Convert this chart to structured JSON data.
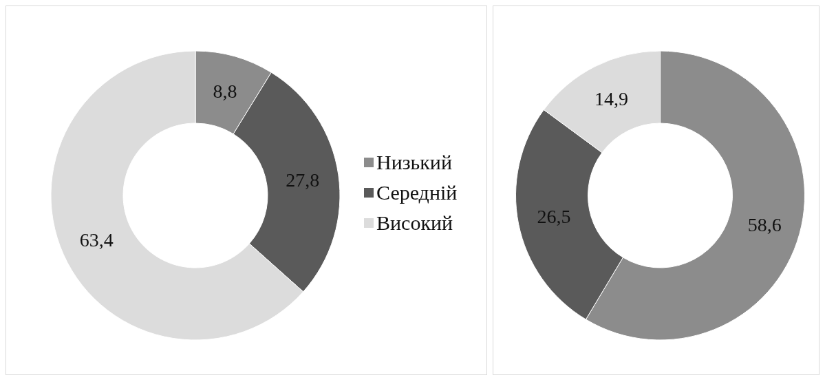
{
  "chart_data": [
    {
      "type": "donut",
      "categories": [
        "Низький",
        "Середній",
        "Високий"
      ],
      "values": [
        8.8,
        27.8,
        63.4
      ],
      "colors": [
        "#8c8c8c",
        "#5a5a5a",
        "#dcdcdc"
      ],
      "value_labels": [
        "8,8",
        "27,8",
        "63,4"
      ],
      "legend": "right"
    },
    {
      "type": "donut",
      "categories": [
        null,
        null,
        null
      ],
      "values": [
        58.6,
        26.5,
        14.9
      ],
      "colors": [
        "#8c8c8c",
        "#5a5a5a",
        "#dcdcdc"
      ],
      "value_labels": [
        "58,6",
        "26,5",
        "14,9"
      ],
      "legend": false
    }
  ]
}
